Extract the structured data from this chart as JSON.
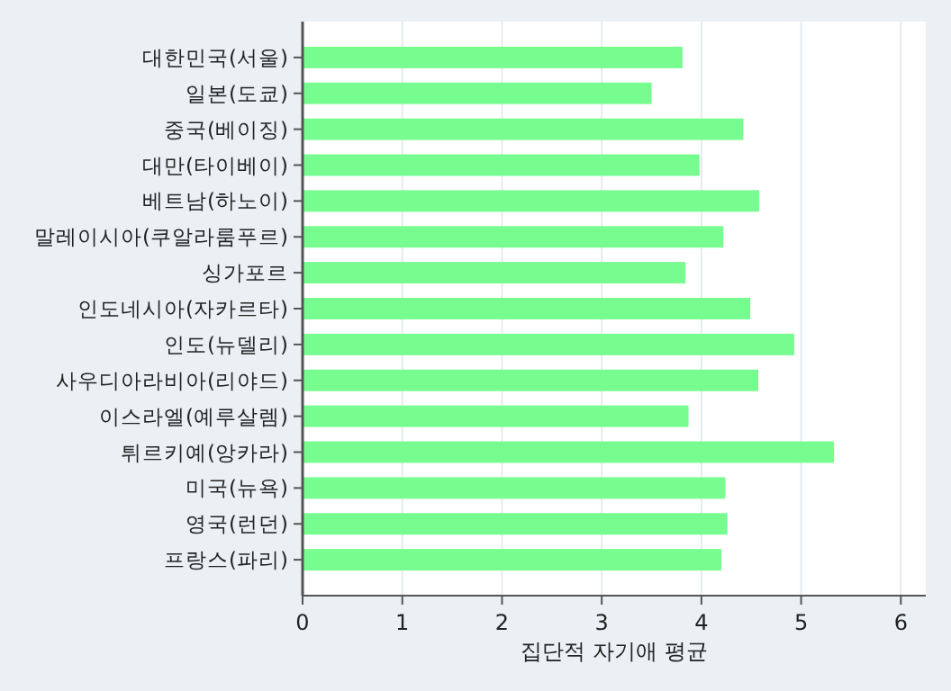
{
  "chart_data": {
    "type": "bar",
    "orientation": "horizontal",
    "categories": [
      "대한민국(서울)",
      "일본(도쿄)",
      "중국(베이징)",
      "대만(타이베이)",
      "베트남(하노이)",
      "말레이시아(쿠알라룸푸르)",
      "싱가포르",
      "인도네시아(자카르타)",
      "인도(뉴델리)",
      "사우디아라비아(리야드)",
      "이스라엘(예루살렘)",
      "튀르키예(앙카라)",
      "미국(뉴욕)",
      "영국(런던)",
      "프랑스(파리)"
    ],
    "values": [
      3.81,
      3.5,
      4.42,
      3.98,
      4.58,
      4.22,
      3.84,
      4.49,
      4.93,
      4.57,
      3.87,
      5.33,
      4.24,
      4.26,
      4.2
    ],
    "color": "#77fc8f",
    "xlim": [
      0,
      6.25
    ],
    "xticks": [
      0,
      1,
      2,
      3,
      4,
      5,
      6
    ],
    "xlabel": "집단적 자기애 평균",
    "grid": "x"
  }
}
